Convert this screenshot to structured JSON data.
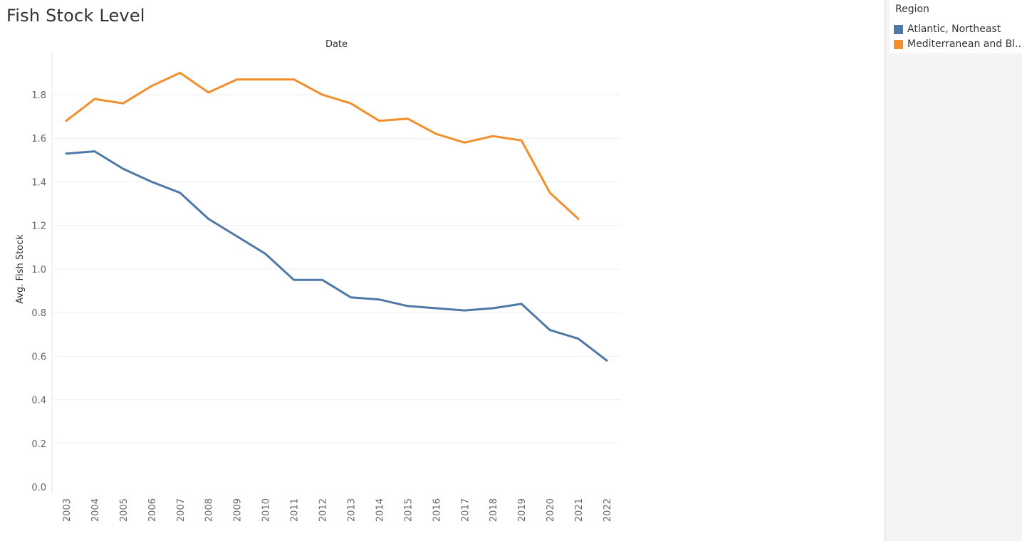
{
  "title": "Fish Stock Level",
  "legend": {
    "title": "Region",
    "items": [
      {
        "label": "Atlantic, Northeast",
        "color": "#4e79a7"
      },
      {
        "label": "Mediterranean and Bl..",
        "color": "#f28e2b"
      }
    ]
  },
  "chart_data": {
    "type": "line",
    "title": "Fish Stock Level",
    "xlabel": "Date",
    "ylabel": "Avg. Fish Stock",
    "x": [
      "2003",
      "2004",
      "2005",
      "2006",
      "2007",
      "2008",
      "2009",
      "2010",
      "2011",
      "2012",
      "2013",
      "2014",
      "2015",
      "2016",
      "2017",
      "2018",
      "2019",
      "2020",
      "2021",
      "2022"
    ],
    "yticks": [
      "0.0",
      "0.2",
      "0.4",
      "0.6",
      "0.8",
      "1.0",
      "1.2",
      "1.4",
      "1.6",
      "1.8"
    ],
    "ylim": [
      0,
      1.95
    ],
    "grid": true,
    "legend_position": "right",
    "series": [
      {
        "name": "Atlantic, Northeast",
        "color": "#4e79a7",
        "values": [
          1.53,
          1.54,
          1.46,
          1.4,
          1.35,
          1.23,
          1.15,
          1.07,
          0.95,
          0.95,
          0.87,
          0.86,
          0.83,
          0.82,
          0.81,
          0.82,
          0.84,
          0.72,
          0.68,
          0.58
        ]
      },
      {
        "name": "Mediterranean and Bl..",
        "color": "#f28e2b",
        "values": [
          1.68,
          1.78,
          1.76,
          1.84,
          1.9,
          1.81,
          1.87,
          1.87,
          1.87,
          1.8,
          1.76,
          1.68,
          1.69,
          1.62,
          1.58,
          1.61,
          1.59,
          1.35,
          1.23,
          null
        ]
      }
    ]
  }
}
